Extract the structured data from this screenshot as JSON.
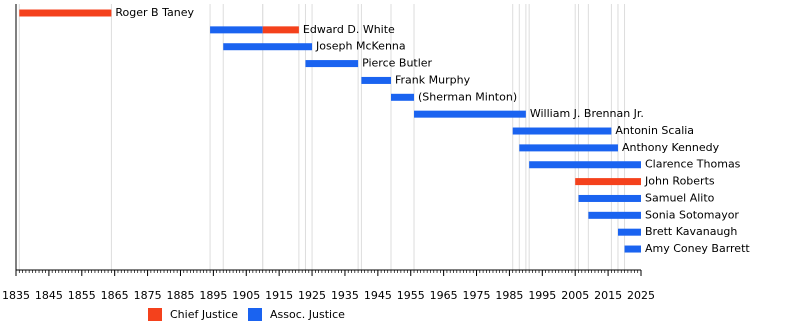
{
  "chart_data": {
    "type": "timeline",
    "xlim": [
      1835,
      2025
    ],
    "xticks": [
      1835,
      1845,
      1855,
      1865,
      1875,
      1885,
      1895,
      1905,
      1915,
      1925,
      1935,
      1945,
      1955,
      1965,
      1975,
      1985,
      1995,
      2005,
      2015,
      2025
    ],
    "series": [
      {
        "name": "Chief Justice",
        "color": "#f4411c"
      },
      {
        "name": "Assoc. Justice",
        "color": "#1a63f0"
      }
    ],
    "rows": [
      {
        "label": "Roger B Taney",
        "terms": [
          {
            "role": "Chief Justice",
            "start": 1836,
            "end": 1864
          }
        ]
      },
      {
        "label": "Edward D. White",
        "terms": [
          {
            "role": "Assoc. Justice",
            "start": 1894,
            "end": 1910
          },
          {
            "role": "Chief Justice",
            "start": 1910,
            "end": 1921
          }
        ]
      },
      {
        "label": "Joseph McKenna",
        "terms": [
          {
            "role": "Assoc. Justice",
            "start": 1898,
            "end": 1925
          }
        ]
      },
      {
        "label": "Pierce Butler",
        "terms": [
          {
            "role": "Assoc. Justice",
            "start": 1923,
            "end": 1939
          }
        ]
      },
      {
        "label": "Frank Murphy",
        "terms": [
          {
            "role": "Assoc. Justice",
            "start": 1940,
            "end": 1949
          }
        ]
      },
      {
        "label": "(Sherman Minton)",
        "terms": [
          {
            "role": "Assoc. Justice",
            "start": 1949,
            "end": 1956
          }
        ]
      },
      {
        "label": "William J. Brennan Jr.",
        "terms": [
          {
            "role": "Assoc. Justice",
            "start": 1956,
            "end": 1990
          }
        ]
      },
      {
        "label": "Antonin Scalia",
        "terms": [
          {
            "role": "Assoc. Justice",
            "start": 1986,
            "end": 2016
          }
        ]
      },
      {
        "label": "Anthony Kennedy",
        "terms": [
          {
            "role": "Assoc. Justice",
            "start": 1988,
            "end": 2018
          }
        ]
      },
      {
        "label": "Clarence Thomas",
        "terms": [
          {
            "role": "Assoc. Justice",
            "start": 1991,
            "end": 2025
          }
        ]
      },
      {
        "label": "John Roberts",
        "terms": [
          {
            "role": "Chief Justice",
            "start": 2005,
            "end": 2025
          }
        ]
      },
      {
        "label": "Samuel Alito",
        "terms": [
          {
            "role": "Assoc. Justice",
            "start": 2006,
            "end": 2025
          }
        ]
      },
      {
        "label": "Sonia Sotomayor",
        "terms": [
          {
            "role": "Assoc. Justice",
            "start": 2009,
            "end": 2025
          }
        ]
      },
      {
        "label": "Brett Kavanaugh",
        "terms": [
          {
            "role": "Assoc. Justice",
            "start": 2018,
            "end": 2025
          }
        ]
      },
      {
        "label": "Amy Coney Barrett",
        "terms": [
          {
            "role": "Assoc. Justice",
            "start": 2020,
            "end": 2025
          }
        ]
      }
    ]
  }
}
